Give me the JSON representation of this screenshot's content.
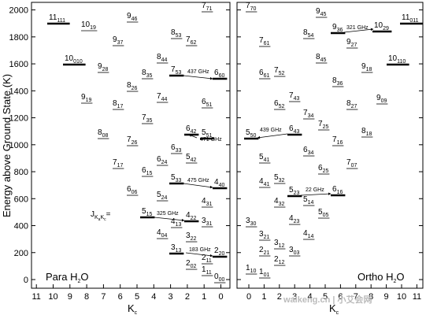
{
  "y_axis": {
    "title": "Energy above Ground State (K)",
    "ticks": [
      "0",
      "200",
      "400",
      "600",
      "800",
      "1000",
      "1200",
      "1400",
      "1600",
      "1800",
      "2000"
    ]
  },
  "x_axis": {
    "title_main": "K",
    "title_sub": "c",
    "para_ticks": [
      "11",
      "10",
      "9",
      "8",
      "7",
      "6",
      "5",
      "4",
      "3",
      "2",
      "1",
      "0"
    ],
    "ortho_ticks": [
      "0",
      "1",
      "2",
      "3",
      "4",
      "5",
      "6",
      "7",
      "8",
      "9",
      "10",
      "11"
    ]
  },
  "para": {
    "title_main": "Para H",
    "title_sub": "2",
    "title_end": "O",
    "notation": {
      "main": "J",
      "sub1": "K",
      "sub2": "a",
      "sub3": "K",
      "sub4": "c",
      "end": "="
    },
    "levels": [
      {
        "m": "11",
        "s": "111",
        "u": false
      },
      {
        "m": "10",
        "s": "19",
        "u": true
      },
      {
        "m": "9",
        "s": "46",
        "u": true
      },
      {
        "m": "7",
        "s": "71",
        "u": true
      },
      {
        "m": "9",
        "s": "37",
        "u": true
      },
      {
        "m": "8",
        "s": "53",
        "u": true
      },
      {
        "m": "7",
        "s": "62",
        "u": true
      },
      {
        "m": "10",
        "s": "010",
        "u": false
      },
      {
        "m": "8",
        "s": "44",
        "u": true
      },
      {
        "m": "9",
        "s": "28",
        "u": true
      },
      {
        "m": "8",
        "s": "35",
        "u": true
      },
      {
        "m": "7",
        "s": "53",
        "u": false
      },
      {
        "m": "6",
        "s": "60",
        "u": false
      },
      {
        "m": "8",
        "s": "26",
        "u": true
      },
      {
        "m": "9",
        "s": "19",
        "u": true
      },
      {
        "m": "8",
        "s": "17",
        "u": true
      },
      {
        "m": "7",
        "s": "44",
        "u": true
      },
      {
        "m": "6",
        "s": "51",
        "u": true
      },
      {
        "m": "7",
        "s": "35",
        "u": true
      },
      {
        "m": "8",
        "s": "08",
        "u": true
      },
      {
        "m": "6",
        "s": "42",
        "u": false
      },
      {
        "m": "5",
        "s": "51",
        "u": false
      },
      {
        "m": "7",
        "s": "26",
        "u": true
      },
      {
        "m": "6",
        "s": "33",
        "u": true
      },
      {
        "m": "7",
        "s": "17",
        "u": true
      },
      {
        "m": "6",
        "s": "24",
        "u": true
      },
      {
        "m": "5",
        "s": "42",
        "u": true
      },
      {
        "m": "6",
        "s": "15",
        "u": true
      },
      {
        "m": "5",
        "s": "33",
        "u": false
      },
      {
        "m": "4",
        "s": "40",
        "u": false
      },
      {
        "m": "6",
        "s": "06",
        "u": true
      },
      {
        "m": "5",
        "s": "24",
        "u": true
      },
      {
        "m": "4",
        "s": "31",
        "u": true
      },
      {
        "m": "5",
        "s": "15",
        "u": false
      },
      {
        "m": "4",
        "s": "22",
        "u": false
      },
      {
        "m": "4",
        "s": "13",
        "u": true
      },
      {
        "m": "3",
        "s": "31",
        "u": true
      },
      {
        "m": "4",
        "s": "04",
        "u": true
      },
      {
        "m": "3",
        "s": "22",
        "u": true
      },
      {
        "m": "3",
        "s": "13",
        "u": false
      },
      {
        "m": "2",
        "s": "20",
        "u": false
      },
      {
        "m": "2",
        "s": "11",
        "u": true
      },
      {
        "m": "2",
        "s": "02",
        "u": true
      },
      {
        "m": "1",
        "s": "11",
        "u": true
      },
      {
        "m": "0",
        "s": "00",
        "u": true
      }
    ],
    "transitions": [
      "437 GHz",
      "471 GHz",
      "475 GHz",
      "325 GHz",
      "183 GHz"
    ]
  },
  "ortho": {
    "title_main": "Ortho H",
    "title_sub": "2",
    "title_end": "O",
    "levels": [
      {
        "m": "7",
        "s": "70",
        "u": true
      },
      {
        "m": "9",
        "s": "45",
        "u": true
      },
      {
        "m": "9",
        "s": "36",
        "u": false
      },
      {
        "m": "10",
        "s": "29",
        "u": false
      },
      {
        "m": "11",
        "s": "011",
        "u": false
      },
      {
        "m": "7",
        "s": "61",
        "u": true
      },
      {
        "m": "8",
        "s": "54",
        "u": true
      },
      {
        "m": "9",
        "s": "27",
        "u": true
      },
      {
        "m": "8",
        "s": "45",
        "u": true
      },
      {
        "m": "9",
        "s": "18",
        "u": true
      },
      {
        "m": "10",
        "s": "110",
        "u": false
      },
      {
        "m": "6",
        "s": "61",
        "u": true
      },
      {
        "m": "7",
        "s": "52",
        "u": true
      },
      {
        "m": "8",
        "s": "36",
        "u": true
      },
      {
        "m": "7",
        "s": "43",
        "u": true
      },
      {
        "m": "9",
        "s": "09",
        "u": true
      },
      {
        "m": "6",
        "s": "52",
        "u": true
      },
      {
        "m": "8",
        "s": "27",
        "u": true
      },
      {
        "m": "7",
        "s": "34",
        "u": true
      },
      {
        "m": "7",
        "s": "25",
        "u": true
      },
      {
        "m": "5",
        "s": "50",
        "u": false
      },
      {
        "m": "6",
        "s": "43",
        "u": false
      },
      {
        "m": "8",
        "s": "18",
        "u": true
      },
      {
        "m": "7",
        "s": "16",
        "u": true
      },
      {
        "m": "6",
        "s": "34",
        "u": true
      },
      {
        "m": "5",
        "s": "41",
        "u": true
      },
      {
        "m": "7",
        "s": "07",
        "u": true
      },
      {
        "m": "6",
        "s": "25",
        "u": true
      },
      {
        "m": "4",
        "s": "41",
        "u": true
      },
      {
        "m": "5",
        "s": "32",
        "u": true
      },
      {
        "m": "5",
        "s": "23",
        "u": false
      },
      {
        "m": "6",
        "s": "16",
        "u": false
      },
      {
        "m": "4",
        "s": "32",
        "u": true
      },
      {
        "m": "5",
        "s": "14",
        "u": true
      },
      {
        "m": "5",
        "s": "05",
        "u": true
      },
      {
        "m": "4",
        "s": "23",
        "u": true
      },
      {
        "m": "3",
        "s": "30",
        "u": true
      },
      {
        "m": "4",
        "s": "14",
        "u": true
      },
      {
        "m": "3",
        "s": "21",
        "u": true
      },
      {
        "m": "3",
        "s": "12",
        "u": true
      },
      {
        "m": "2",
        "s": "21",
        "u": true
      },
      {
        "m": "3",
        "s": "03",
        "u": true
      },
      {
        "m": "2",
        "s": "12",
        "u": true
      },
      {
        "m": "1",
        "s": "10",
        "u": true
      },
      {
        "m": "1",
        "s": "01",
        "u": true
      }
    ],
    "transitions": [
      "321 GHz",
      "439 GHz",
      "22 GHz"
    ]
  },
  "watermark": "walkeng.cn | 小艾会网"
}
